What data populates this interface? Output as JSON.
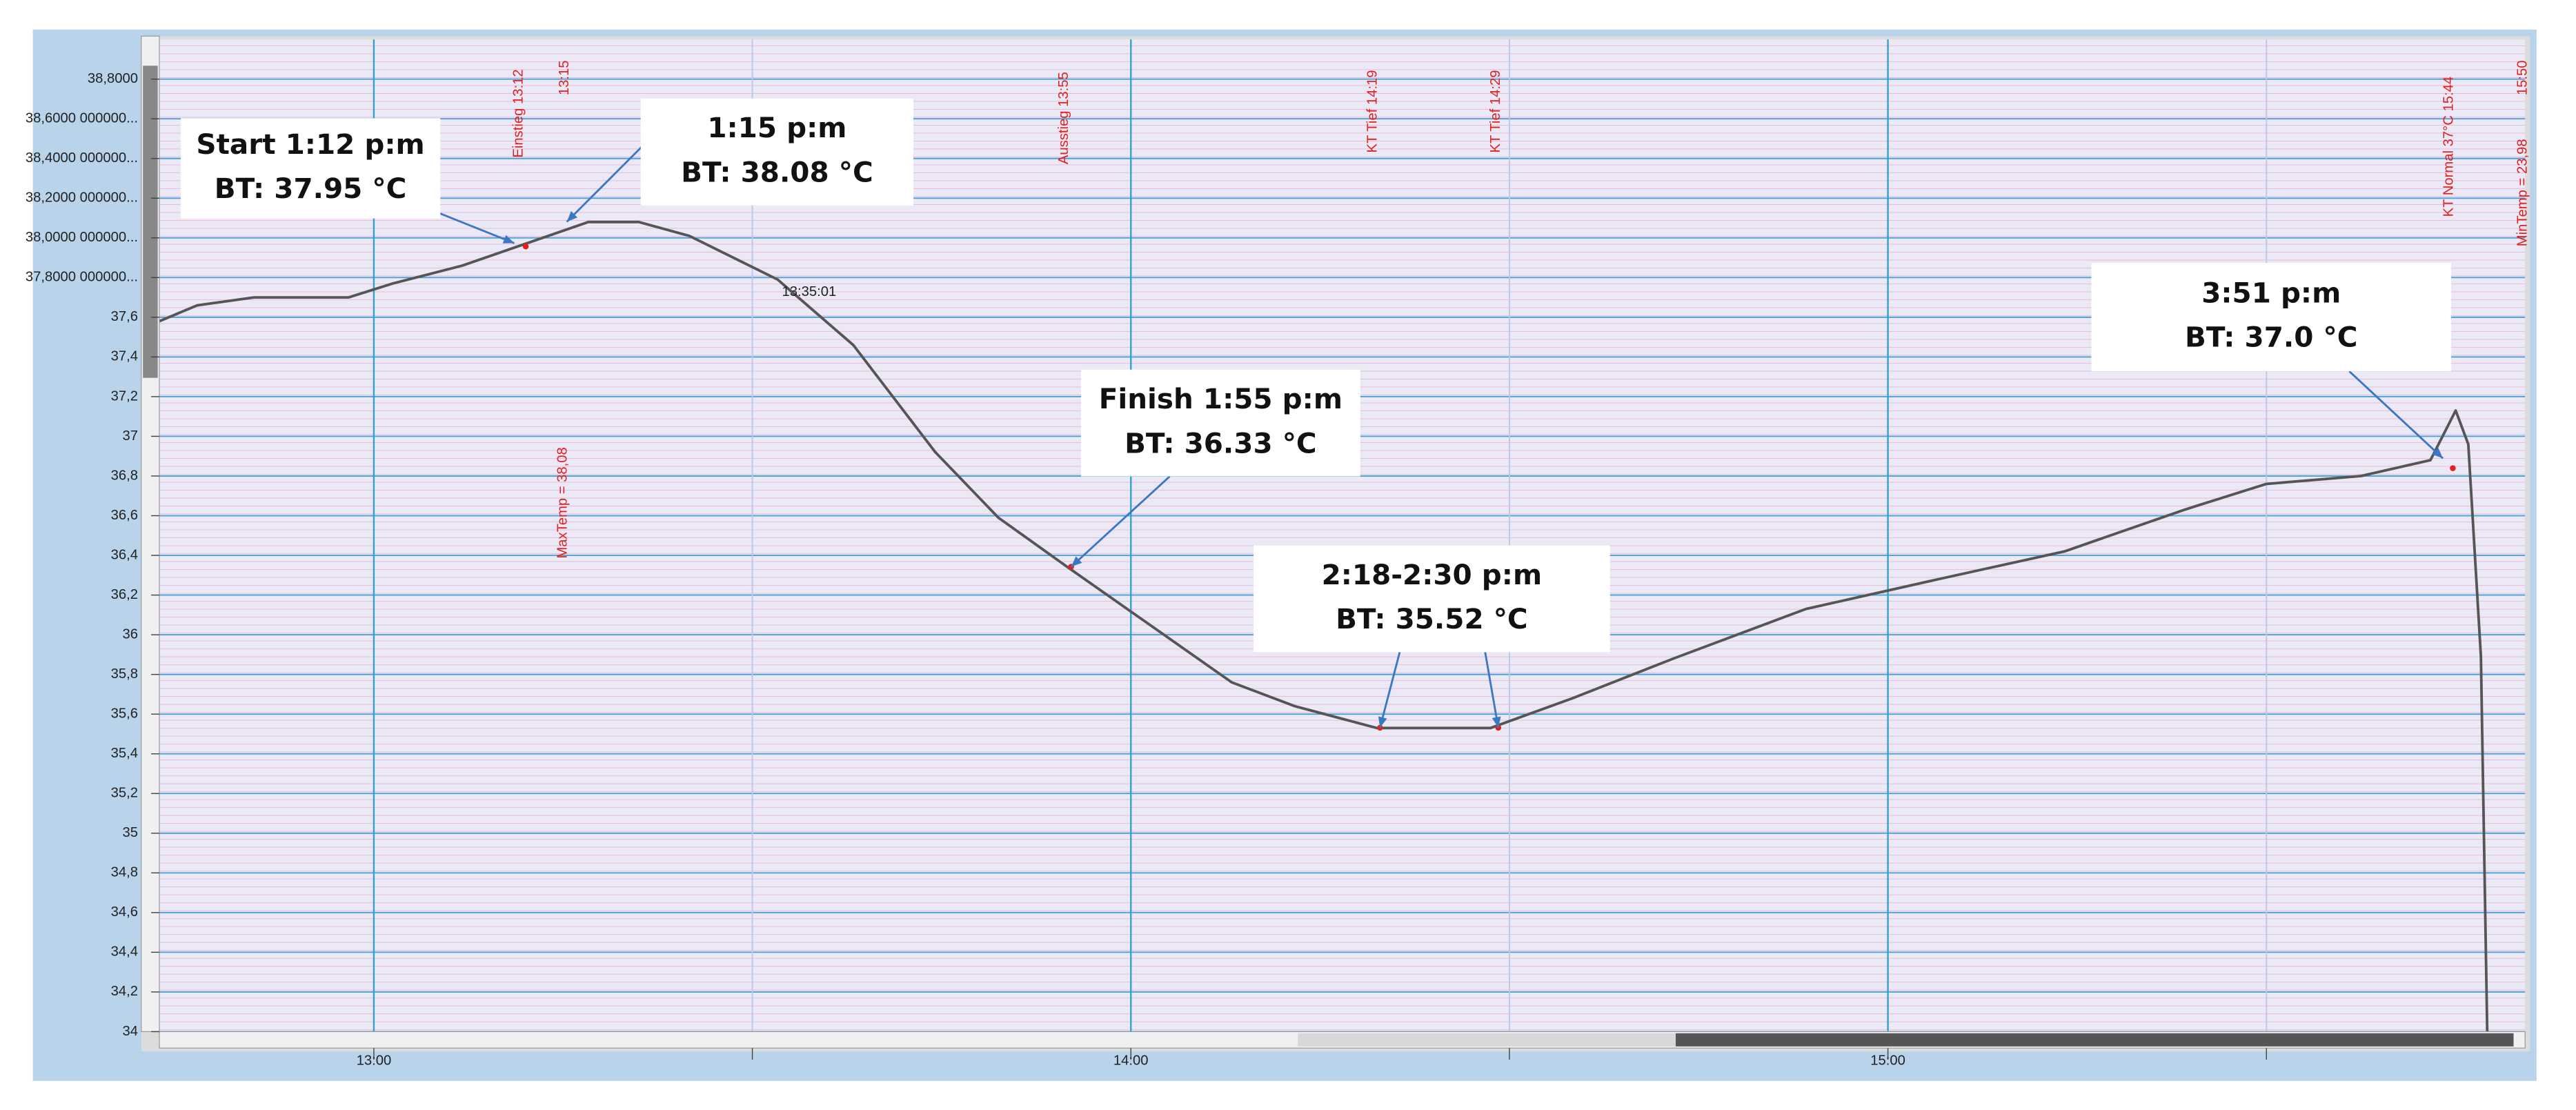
{
  "chart_data": {
    "type": "line",
    "x": [
      763,
      766,
      770.5,
      778,
      781.5,
      787,
      792,
      797,
      801,
      805,
      812,
      818,
      824.5,
      829.5,
      835,
      841.5,
      848,
      853,
      859.5,
      868.5,
      875,
      883,
      893.5,
      904,
      914,
      923.5,
      930,
      937.5,
      943,
      945,
      946,
      947,
      947.5
    ],
    "series": [
      {
        "name": null,
        "color": "#555555",
        "values": [
          37.58,
          37.66,
          37.7,
          37.7,
          37.77,
          37.86,
          37.97,
          38.08,
          38.08,
          38.01,
          37.79,
          37.46,
          36.92,
          36.59,
          36.34,
          36.05,
          35.76,
          35.64,
          35.53,
          35.53,
          35.68,
          35.88,
          36.13,
          36.28,
          36.42,
          36.63,
          36.76,
          36.8,
          36.88,
          37.13,
          36.96,
          35.89,
          34
        ]
      }
    ],
    "xlim": [
      763,
      950.5
    ],
    "xticks": [
      {
        "value": 780,
        "label": "13:00"
      },
      {
        "value": 840,
        "label": "14:00"
      },
      {
        "value": 900,
        "label": "15:00"
      }
    ],
    "x_minor_ticks": [
      810,
      870,
      930
    ],
    "ylim": [
      34,
      39
    ],
    "yticks": [
      34,
      {
        "value": 34.2,
        "label": "34,2"
      },
      {
        "value": 34.4,
        "label": "34,4"
      },
      {
        "value": 34.6,
        "label": "34,6"
      },
      {
        "value": 34.8,
        "label": "34,8"
      },
      35,
      {
        "value": 35.2,
        "label": "35,2"
      },
      {
        "value": 35.4,
        "label": "35,4"
      },
      {
        "value": 35.6,
        "label": "35,6"
      },
      {
        "value": 35.8,
        "label": "35,8"
      },
      36,
      {
        "value": 36.2,
        "label": "36,2"
      },
      {
        "value": 36.4,
        "label": "36,4"
      },
      {
        "value": 36.6,
        "label": "36,6"
      },
      {
        "value": 36.8,
        "label": "36,8"
      },
      37,
      {
        "value": 37.2,
        "label": "37,2"
      },
      {
        "value": 37.4,
        "label": "37,4"
      },
      {
        "value": 37.6,
        "label": "37,6"
      },
      {
        "value": 37.8,
        "label": "37,8000 000000..."
      },
      {
        "value": 38,
        "label": "38,0000 000000..."
      },
      {
        "value": 38.2,
        "label": "38,2000 000000..."
      },
      {
        "value": 38.4,
        "label": "38,4000 000000..."
      },
      {
        "value": 38.6,
        "label": "38,6000 000000..."
      },
      {
        "value": 38.8,
        "label": "38,8000"
      }
    ],
    "grid": true,
    "annotations": [
      {
        "lines": [
          "Start 1:12 p:m",
          "BT: 37.95 °C"
        ]
      },
      {
        "lines": [
          "1:15 p:m",
          "BT: 38.08 °C"
        ]
      },
      {
        "lines": [
          "Finish 1:55 p:m",
          "BT: 36.33 °C"
        ]
      },
      {
        "lines": [
          "2:18-2:30 p:m",
          "BT: 35.52 °C"
        ]
      },
      {
        "lines": [
          "3:51 p:m",
          "BT: 37.0 °C"
        ]
      }
    ],
    "event_labels": [
      "Einstieg 13:12",
      "13:15",
      "MaxTemp = 38,08",
      "Ausstieg 13:55",
      "KT Tief 14:19",
      "KT Tief 14:29",
      "KT Normal 37°C 15:44",
      "15:50",
      "MinTemp = 23,98"
    ],
    "point_label": "13:35:01"
  }
}
